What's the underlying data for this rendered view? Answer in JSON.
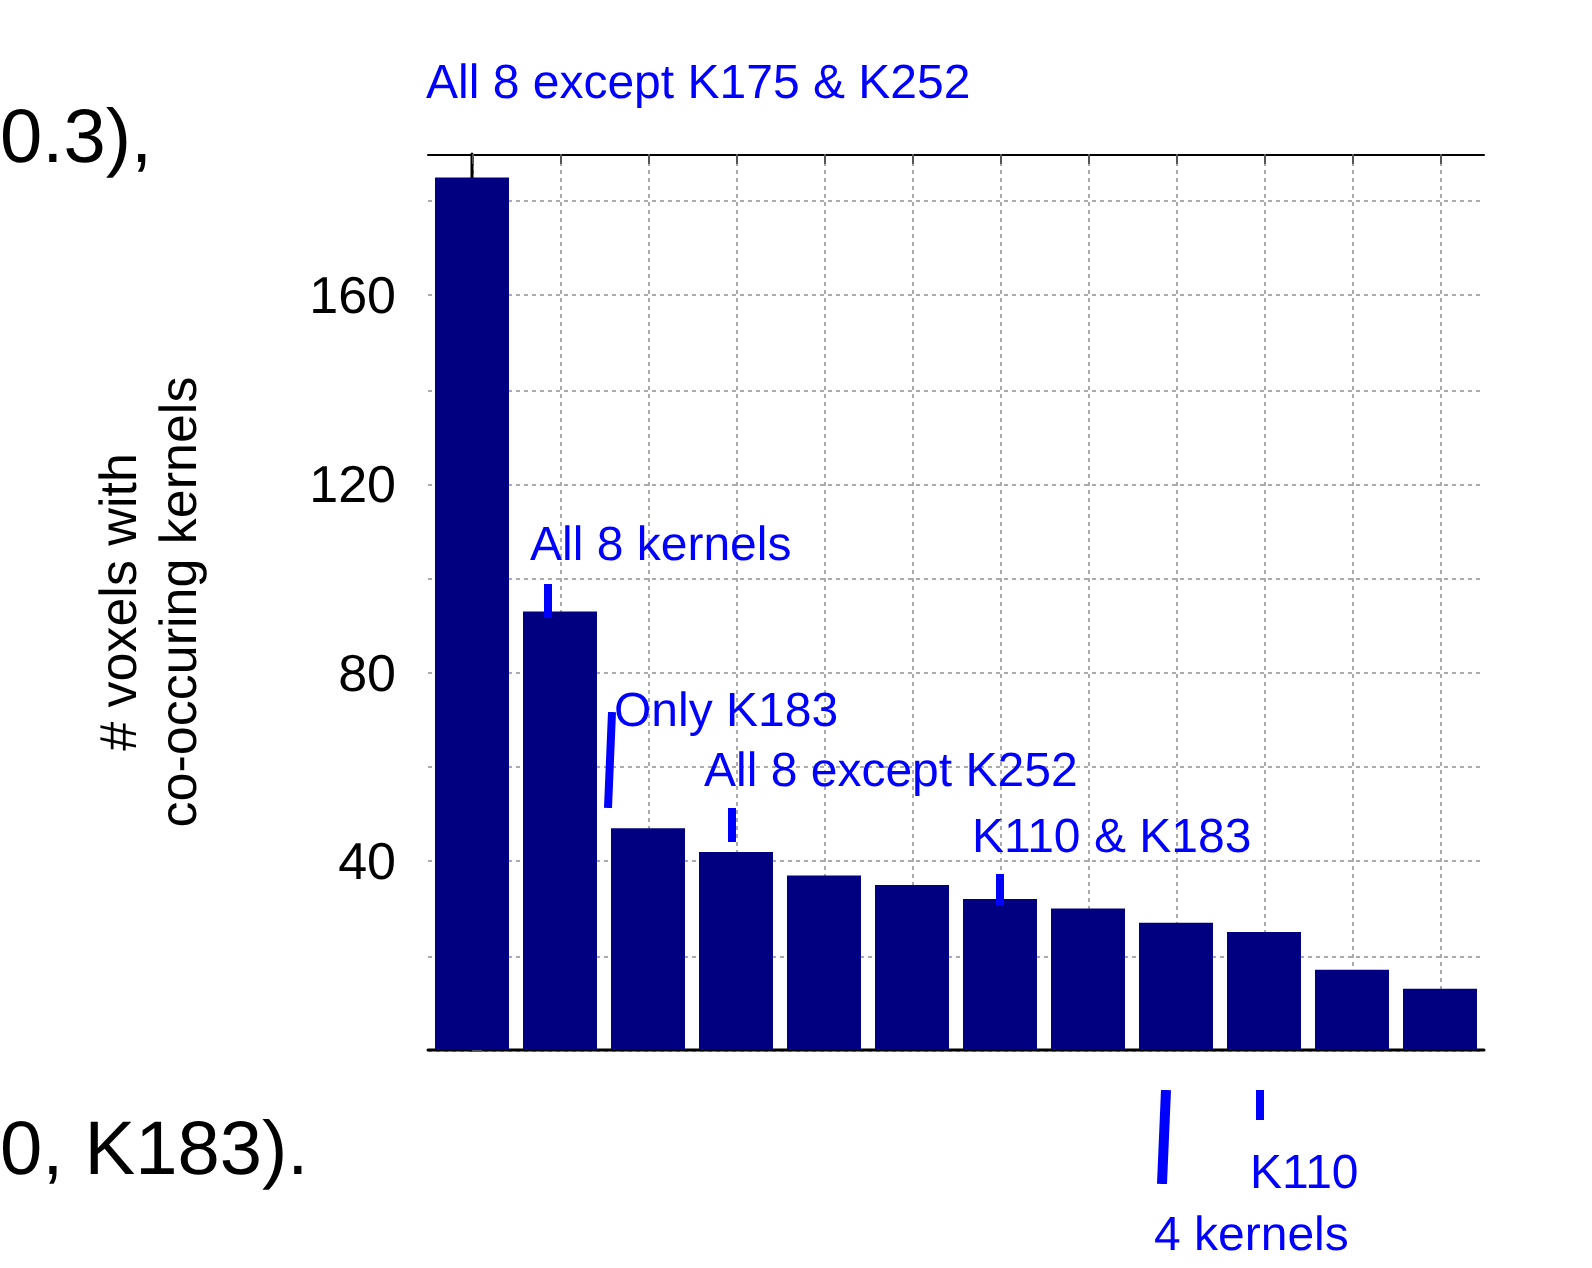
{
  "chart_data": {
    "type": "bar",
    "ylabel": "# voxels with\nco-occuring kernels",
    "categories": [
      null,
      null,
      null,
      null,
      null,
      null,
      null,
      null,
      null,
      null,
      null,
      null
    ],
    "values": [
      185,
      93,
      47,
      42,
      37,
      35,
      32,
      30,
      27,
      25,
      17,
      13
    ],
    "color": "#000080",
    "ylim": [
      0,
      190
    ],
    "yticks": [
      {
        "value": 0,
        "label": null
      },
      {
        "value": 20,
        "label": null
      },
      40,
      {
        "value": 60,
        "label": null
      },
      80,
      {
        "value": 100,
        "label": null
      },
      120,
      {
        "value": 140,
        "label": null
      },
      160,
      {
        "value": 180,
        "label": null
      }
    ],
    "grid": true,
    "annotations": [
      "All 8 except K175 & K252",
      "All 8 kernels",
      "Only K183",
      "All 8 except K252",
      "K110 & K183",
      "K110",
      "4 kernels",
      "0.3),",
      "0, K183)."
    ]
  }
}
